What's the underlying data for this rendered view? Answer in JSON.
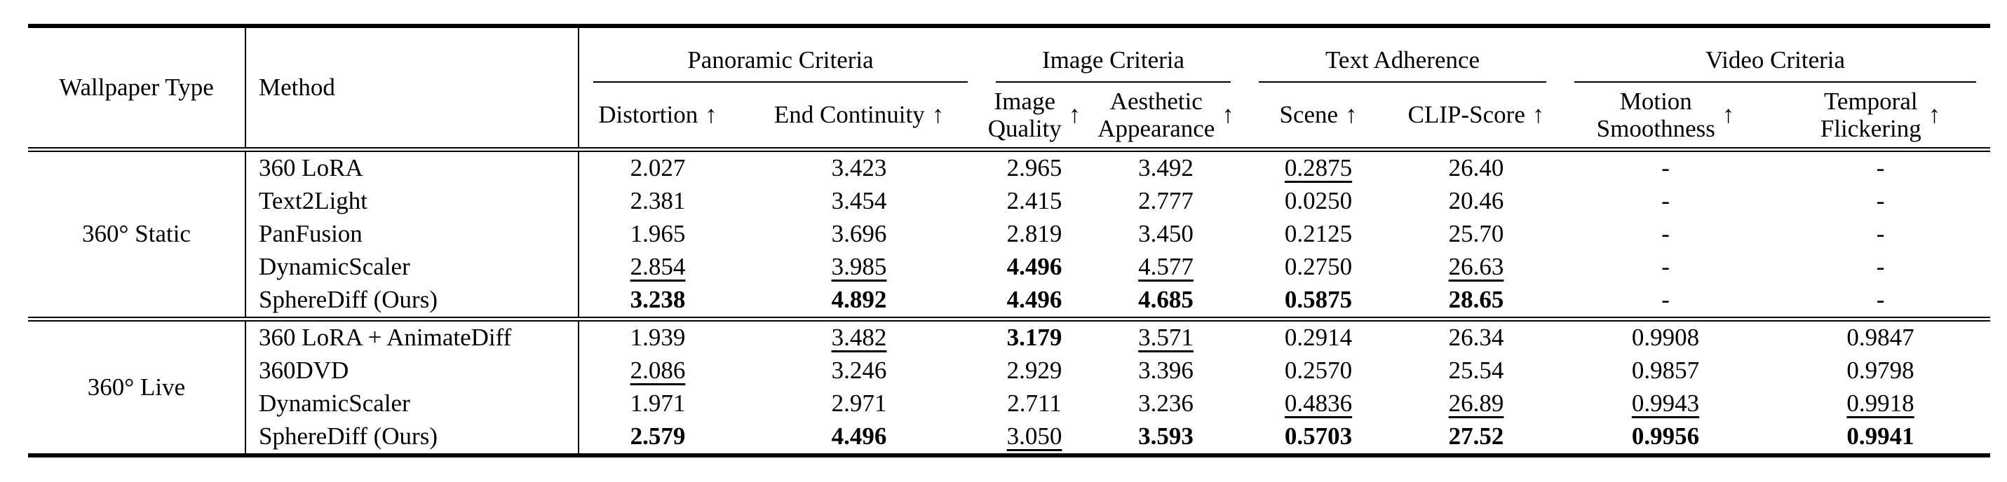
{
  "page": {
    "background_color": "#ffffff",
    "text_color": "#000000",
    "rule_color": "#000000"
  },
  "header": {
    "wallpaper_type": "Wallpaper Type",
    "method": "Method",
    "arrow": "↑",
    "groups": [
      {
        "label": "Panoramic Criteria"
      },
      {
        "label": "Image Criteria"
      },
      {
        "label": "Text Adherence"
      },
      {
        "label": "Video Criteria"
      }
    ],
    "metrics": [
      {
        "lines": [
          "Distortion"
        ]
      },
      {
        "lines": [
          "End Continuity"
        ]
      },
      {
        "lines": [
          "Image",
          "Quality"
        ]
      },
      {
        "lines": [
          "Aesthetic",
          "Appearance"
        ]
      },
      {
        "lines": [
          "Scene"
        ]
      },
      {
        "lines": [
          "CLIP-Score"
        ]
      },
      {
        "lines": [
          "Motion",
          "Smoothness"
        ]
      },
      {
        "lines": [
          "Temporal",
          "Flickering"
        ]
      }
    ]
  },
  "body": {
    "blocks": [
      {
        "type_label": "360° Static",
        "rows": [
          {
            "method": "360 LoRA",
            "values": [
              {
                "t": "2.027",
                "s": "normal"
              },
              {
                "t": "3.423",
                "s": "normal"
              },
              {
                "t": "2.965",
                "s": "normal"
              },
              {
                "t": "3.492",
                "s": "normal"
              },
              {
                "t": "0.2875",
                "s": "underline"
              },
              {
                "t": "26.40",
                "s": "normal"
              },
              {
                "t": "-",
                "s": "normal"
              },
              {
                "t": "-",
                "s": "normal"
              }
            ]
          },
          {
            "method": "Text2Light",
            "values": [
              {
                "t": "2.381",
                "s": "normal"
              },
              {
                "t": "3.454",
                "s": "normal"
              },
              {
                "t": "2.415",
                "s": "normal"
              },
              {
                "t": "2.777",
                "s": "normal"
              },
              {
                "t": "0.0250",
                "s": "normal"
              },
              {
                "t": "20.46",
                "s": "normal"
              },
              {
                "t": "-",
                "s": "normal"
              },
              {
                "t": "-",
                "s": "normal"
              }
            ]
          },
          {
            "method": "PanFusion",
            "values": [
              {
                "t": "1.965",
                "s": "normal"
              },
              {
                "t": "3.696",
                "s": "normal"
              },
              {
                "t": "2.819",
                "s": "normal"
              },
              {
                "t": "3.450",
                "s": "normal"
              },
              {
                "t": "0.2125",
                "s": "normal"
              },
              {
                "t": "25.70",
                "s": "normal"
              },
              {
                "t": "-",
                "s": "normal"
              },
              {
                "t": "-",
                "s": "normal"
              }
            ]
          },
          {
            "method": "DynamicScaler",
            "values": [
              {
                "t": "2.854",
                "s": "underline"
              },
              {
                "t": "3.985",
                "s": "underline"
              },
              {
                "t": "4.496",
                "s": "bold"
              },
              {
                "t": "4.577",
                "s": "underline"
              },
              {
                "t": "0.2750",
                "s": "normal"
              },
              {
                "t": "26.63",
                "s": "underline"
              },
              {
                "t": "-",
                "s": "normal"
              },
              {
                "t": "-",
                "s": "normal"
              }
            ]
          },
          {
            "method": "SphereDiff (Ours)",
            "values": [
              {
                "t": "3.238",
                "s": "bold"
              },
              {
                "t": "4.892",
                "s": "bold"
              },
              {
                "t": "4.496",
                "s": "bold"
              },
              {
                "t": "4.685",
                "s": "bold"
              },
              {
                "t": "0.5875",
                "s": "bold"
              },
              {
                "t": "28.65",
                "s": "bold"
              },
              {
                "t": "-",
                "s": "normal"
              },
              {
                "t": "-",
                "s": "normal"
              }
            ]
          }
        ]
      },
      {
        "type_label": "360° Live",
        "rows": [
          {
            "method": "360 LoRA + AnimateDiff",
            "values": [
              {
                "t": "1.939",
                "s": "normal"
              },
              {
                "t": "3.482",
                "s": "underline"
              },
              {
                "t": "3.179",
                "s": "bold"
              },
              {
                "t": "3.571",
                "s": "underline"
              },
              {
                "t": "0.2914",
                "s": "normal"
              },
              {
                "t": "26.34",
                "s": "normal"
              },
              {
                "t": "0.9908",
                "s": "normal"
              },
              {
                "t": "0.9847",
                "s": "normal"
              }
            ]
          },
          {
            "method": "360DVD",
            "values": [
              {
                "t": "2.086",
                "s": "underline"
              },
              {
                "t": "3.246",
                "s": "normal"
              },
              {
                "t": "2.929",
                "s": "normal"
              },
              {
                "t": "3.396",
                "s": "normal"
              },
              {
                "t": "0.2570",
                "s": "normal"
              },
              {
                "t": "25.54",
                "s": "normal"
              },
              {
                "t": "0.9857",
                "s": "normal"
              },
              {
                "t": "0.9798",
                "s": "normal"
              }
            ]
          },
          {
            "method": "DynamicScaler",
            "values": [
              {
                "t": "1.971",
                "s": "normal"
              },
              {
                "t": "2.971",
                "s": "normal"
              },
              {
                "t": "2.711",
                "s": "normal"
              },
              {
                "t": "3.236",
                "s": "normal"
              },
              {
                "t": "0.4836",
                "s": "underline"
              },
              {
                "t": "26.89",
                "s": "underline"
              },
              {
                "t": "0.9943",
                "s": "underline"
              },
              {
                "t": "0.9918",
                "s": "underline"
              }
            ]
          },
          {
            "method": "SphereDiff (Ours)",
            "values": [
              {
                "t": "2.579",
                "s": "bold"
              },
              {
                "t": "4.496",
                "s": "bold"
              },
              {
                "t": "3.050",
                "s": "underline"
              },
              {
                "t": "3.593",
                "s": "bold"
              },
              {
                "t": "0.5703",
                "s": "bold"
              },
              {
                "t": "27.52",
                "s": "bold"
              },
              {
                "t": "0.9956",
                "s": "bold"
              },
              {
                "t": "0.9941",
                "s": "bold"
              }
            ]
          }
        ]
      }
    ]
  }
}
